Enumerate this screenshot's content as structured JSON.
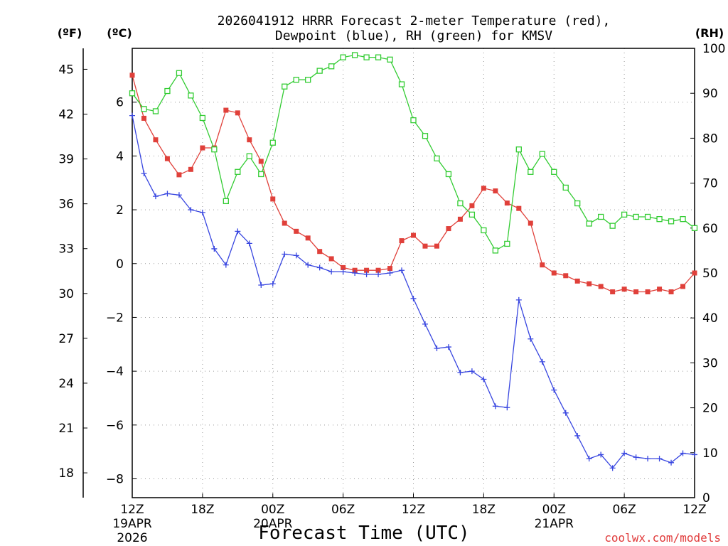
{
  "chart_data": {
    "type": "line",
    "title_line1": "2026041912 HRRR Forecast 2-meter Temperature (red),",
    "title_line2": "Dewpoint (blue), RH (green) for KMSV",
    "left_outer_axis_label": "(ºF)",
    "left_inner_axis_label": "(ºC)",
    "right_axis_label": "(RH)",
    "xlabel": "Forecast Time (UTC)",
    "credit": "coolwx.com/models",
    "x_range_hours": [
      0,
      48
    ],
    "celsius_ylim": [
      -8.7,
      8.0
    ],
    "celsius_ticks": [
      "6",
      "4",
      "2",
      "0",
      "−2",
      "−4",
      "−6",
      "−8"
    ],
    "celsius_tick_values": [
      6,
      4,
      2,
      0,
      -2,
      -4,
      -6,
      -8
    ],
    "fahrenheit_ticks": [
      "45",
      "42",
      "39",
      "36",
      "33",
      "30",
      "27",
      "24",
      "21",
      "18"
    ],
    "fahrenheit_tick_values": [
      45,
      42,
      39,
      36,
      33,
      30,
      27,
      24,
      21,
      18
    ],
    "rh_ylim": [
      0,
      100
    ],
    "rh_ticks": [
      "100",
      "90",
      "80",
      "70",
      "60",
      "50",
      "40",
      "30",
      "20",
      "10",
      "0"
    ],
    "rh_tick_values": [
      100,
      90,
      80,
      70,
      60,
      50,
      40,
      30,
      20,
      10,
      0
    ],
    "x_ticks": [
      {
        "hour": 0,
        "label": "12Z",
        "sub1": "19APR",
        "sub2": "2026"
      },
      {
        "hour": 6,
        "label": "18Z",
        "sub1": "",
        "sub2": ""
      },
      {
        "hour": 12,
        "label": "00Z",
        "sub1": "20APR",
        "sub2": ""
      },
      {
        "hour": 18,
        "label": "06Z",
        "sub1": "",
        "sub2": ""
      },
      {
        "hour": 24,
        "label": "12Z",
        "sub1": "",
        "sub2": ""
      },
      {
        "hour": 30,
        "label": "18Z",
        "sub1": "",
        "sub2": ""
      },
      {
        "hour": 36,
        "label": "00Z",
        "sub1": "21APR",
        "sub2": ""
      },
      {
        "hour": 42,
        "label": "06Z",
        "sub1": "",
        "sub2": ""
      },
      {
        "hour": 48,
        "label": "12Z",
        "sub1": "",
        "sub2": ""
      }
    ],
    "series": [
      {
        "name": "Temperature",
        "unit": "C",
        "color": "#e0403a",
        "marker": "filled-square",
        "values": [
          7.0,
          5.4,
          4.6,
          3.9,
          3.3,
          3.5,
          4.3,
          4.3,
          5.7,
          5.6,
          4.6,
          3.8,
          2.4,
          1.5,
          1.2,
          0.95,
          0.45,
          0.18,
          -0.15,
          -0.25,
          -0.25,
          -0.25,
          -0.18,
          0.85,
          1.05,
          0.65,
          0.65,
          1.3,
          1.65,
          2.15,
          2.8,
          2.7,
          2.25,
          2.05,
          1.5,
          -0.05,
          -0.35,
          -0.45,
          -0.65,
          -0.75,
          -0.85,
          -1.05,
          -0.95,
          -1.05,
          -1.05,
          -0.95,
          -1.05,
          -0.85,
          -0.35
        ]
      },
      {
        "name": "Dewpoint",
        "unit": "C",
        "color": "#3846e0",
        "marker": "plus",
        "values": [
          5.5,
          3.35,
          2.5,
          2.6,
          2.55,
          2.0,
          1.9,
          0.55,
          -0.05,
          1.2,
          0.75,
          -0.8,
          -0.75,
          0.35,
          0.3,
          -0.05,
          -0.15,
          -0.3,
          -0.3,
          -0.35,
          -0.4,
          -0.4,
          -0.35,
          -0.25,
          -1.3,
          -2.25,
          -3.15,
          -3.1,
          -4.05,
          -4.0,
          -4.3,
          -5.3,
          -5.35,
          -1.35,
          -2.8,
          -3.65,
          -4.7,
          -5.55,
          -6.4,
          -7.25,
          -7.1,
          -7.6,
          -7.05,
          -7.2,
          -7.25,
          -7.25,
          -7.4,
          -7.05,
          -7.1
        ]
      },
      {
        "name": "RH",
        "unit": "%",
        "color": "#33cc33",
        "marker": "open-square",
        "values": [
          90,
          86.5,
          86,
          90.5,
          94.5,
          89.5,
          84.5,
          77.5,
          66,
          72.5,
          76,
          72,
          79,
          91.5,
          93,
          93,
          95,
          96,
          98,
          98.5,
          98,
          98,
          97.5,
          92,
          84,
          80.5,
          75.5,
          72,
          65.5,
          63,
          59.5,
          55,
          56.5,
          77.5,
          72.5,
          76.5,
          72.5,
          69,
          65.5,
          61,
          62.5,
          60.5,
          63,
          62.5,
          62.5,
          62,
          61.5,
          62,
          60
        ]
      }
    ]
  }
}
